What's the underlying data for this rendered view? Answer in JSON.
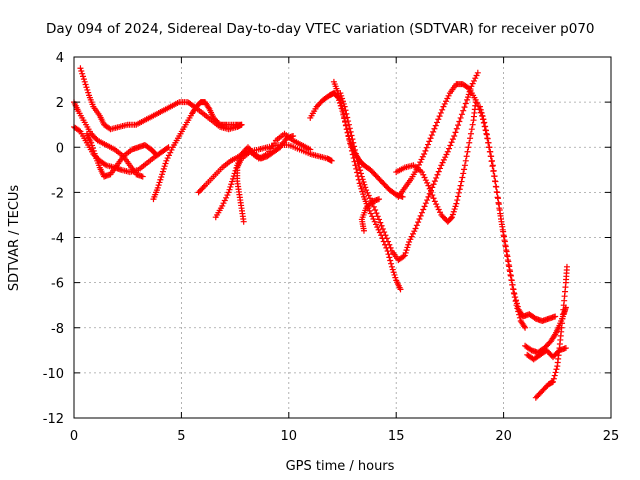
{
  "chart_data": {
    "type": "scatter",
    "title": "Day 094 of 2024, Sidereal Day-to-day VTEC variation (SDTVAR) for receiver p070",
    "xlabel": "GPS time / hours",
    "ylabel": "SDTVAR / TECUs",
    "xlim": [
      0,
      25
    ],
    "ylim": [
      -12,
      4
    ],
    "xticks": [
      "0",
      "5",
      "10",
      "15",
      "20",
      "25"
    ],
    "yticks": [
      "4",
      "2",
      "0",
      "-2",
      "-4",
      "-6",
      "-8",
      "-10",
      "-12"
    ],
    "grid": true,
    "marker": "plus",
    "color": "#ff0000",
    "series": [
      {
        "values": [
          [
            0.0,
            0.9
          ],
          [
            0.3,
            0.7
          ],
          [
            0.6,
            0.2
          ],
          [
            0.9,
            -0.3
          ],
          [
            1.2,
            -0.6
          ],
          [
            1.5,
            -0.8
          ],
          [
            1.9,
            -0.9
          ],
          [
            2.2,
            -1.0
          ],
          [
            2.6,
            -1.1
          ],
          [
            3.0,
            -1.0
          ],
          [
            3.4,
            -0.7
          ],
          [
            3.8,
            -0.4
          ],
          [
            4.1,
            -0.2
          ],
          [
            4.4,
            0.0
          ]
        ]
      },
      {
        "values": [
          [
            0.0,
            2.0
          ],
          [
            0.2,
            1.6
          ],
          [
            0.5,
            1.1
          ],
          [
            0.8,
            0.6
          ],
          [
            1.1,
            0.3
          ],
          [
            1.5,
            0.1
          ],
          [
            1.9,
            -0.1
          ],
          [
            2.3,
            -0.4
          ],
          [
            2.6,
            -0.8
          ],
          [
            2.9,
            -1.2
          ],
          [
            3.2,
            -1.3
          ]
        ]
      },
      {
        "values": [
          [
            0.3,
            3.5
          ],
          [
            0.5,
            2.9
          ],
          [
            0.7,
            2.3
          ],
          [
            0.9,
            1.8
          ],
          [
            1.2,
            1.4
          ],
          [
            1.4,
            1.0
          ],
          [
            1.7,
            0.8
          ],
          [
            2.1,
            0.9
          ],
          [
            2.5,
            1.0
          ],
          [
            2.9,
            1.0
          ],
          [
            3.3,
            1.2
          ],
          [
            3.7,
            1.4
          ],
          [
            4.1,
            1.6
          ],
          [
            4.5,
            1.8
          ],
          [
            4.9,
            2.0
          ],
          [
            5.3,
            2.0
          ],
          [
            5.6,
            1.8
          ],
          [
            6.0,
            1.5
          ],
          [
            6.4,
            1.2
          ],
          [
            6.8,
            0.9
          ],
          [
            7.2,
            0.8
          ],
          [
            7.6,
            0.9
          ],
          [
            7.8,
            1.0
          ]
        ]
      },
      {
        "values": [
          [
            0.6,
            0.6
          ],
          [
            0.8,
            0.2
          ],
          [
            1.0,
            -0.4
          ],
          [
            1.2,
            -0.9
          ],
          [
            1.4,
            -1.3
          ],
          [
            1.7,
            -1.2
          ],
          [
            2.0,
            -0.8
          ],
          [
            2.3,
            -0.4
          ],
          [
            2.7,
            -0.1
          ],
          [
            3.0,
            0.0
          ],
          [
            3.3,
            0.1
          ],
          [
            3.6,
            -0.1
          ],
          [
            3.8,
            -0.3
          ]
        ]
      },
      {
        "values": [
          [
            3.7,
            -2.3
          ],
          [
            3.9,
            -1.8
          ],
          [
            4.1,
            -1.2
          ],
          [
            4.3,
            -0.6
          ],
          [
            4.6,
            0.0
          ],
          [
            4.9,
            0.5
          ],
          [
            5.2,
            1.0
          ],
          [
            5.5,
            1.5
          ],
          [
            5.7,
            1.8
          ],
          [
            5.9,
            2.0
          ],
          [
            6.1,
            2.0
          ],
          [
            6.3,
            1.7
          ],
          [
            6.5,
            1.3
          ],
          [
            6.8,
            1.0
          ],
          [
            7.1,
            1.0
          ],
          [
            7.5,
            1.0
          ],
          [
            7.8,
            1.0
          ]
        ]
      },
      {
        "values": [
          [
            5.8,
            -2.0
          ],
          [
            6.1,
            -1.7
          ],
          [
            6.5,
            -1.3
          ],
          [
            6.9,
            -0.9
          ],
          [
            7.3,
            -0.6
          ],
          [
            7.7,
            -0.4
          ],
          [
            8.1,
            -0.2
          ],
          [
            8.6,
            -0.1
          ],
          [
            9.0,
            0.0
          ],
          [
            9.5,
            0.1
          ],
          [
            10.0,
            0.1
          ],
          [
            10.5,
            -0.1
          ],
          [
            11.0,
            -0.3
          ],
          [
            11.4,
            -0.4
          ],
          [
            11.8,
            -0.5
          ],
          [
            12.0,
            -0.6
          ]
        ]
      },
      {
        "values": [
          [
            6.6,
            -3.1
          ],
          [
            6.9,
            -2.6
          ],
          [
            7.2,
            -2.0
          ],
          [
            7.4,
            -1.4
          ],
          [
            7.6,
            -0.8
          ],
          [
            7.8,
            -0.3
          ],
          [
            8.1,
            0.0
          ],
          [
            8.4,
            -0.3
          ],
          [
            8.7,
            -0.5
          ],
          [
            9.0,
            -0.4
          ],
          [
            9.3,
            -0.2
          ],
          [
            9.6,
            0.0
          ],
          [
            9.9,
            0.4
          ],
          [
            10.2,
            0.5
          ]
        ]
      },
      {
        "values": [
          [
            7.9,
            -3.3
          ],
          [
            7.8,
            -2.7
          ],
          [
            7.7,
            -2.1
          ],
          [
            7.6,
            -1.5
          ],
          [
            7.6,
            -0.9
          ],
          [
            7.8,
            -0.5
          ],
          [
            8.2,
            -0.2
          ],
          [
            8.6,
            -0.5
          ],
          [
            9.0,
            -0.3
          ],
          [
            9.4,
            0.3
          ],
          [
            9.8,
            0.6
          ],
          [
            10.2,
            0.3
          ],
          [
            10.6,
            0.1
          ],
          [
            11.0,
            -0.1
          ]
        ]
      },
      {
        "values": [
          [
            11.0,
            1.3
          ],
          [
            11.3,
            1.8
          ],
          [
            11.6,
            2.1
          ],
          [
            11.9,
            2.3
          ],
          [
            12.1,
            2.4
          ],
          [
            12.3,
            2.2
          ],
          [
            12.5,
            1.6
          ],
          [
            12.7,
            0.8
          ],
          [
            12.9,
            0.1
          ],
          [
            13.1,
            -0.3
          ],
          [
            13.3,
            -0.6
          ],
          [
            13.5,
            -0.8
          ],
          [
            13.8,
            -1.0
          ],
          [
            14.1,
            -1.3
          ],
          [
            14.4,
            -1.6
          ],
          [
            14.7,
            -1.9
          ],
          [
            15.0,
            -2.1
          ],
          [
            15.3,
            -2.2
          ]
        ]
      },
      {
        "values": [
          [
            12.1,
            2.9
          ],
          [
            12.3,
            2.4
          ],
          [
            12.5,
            1.7
          ],
          [
            12.7,
            0.8
          ],
          [
            12.9,
            0.0
          ],
          [
            13.1,
            -0.8
          ],
          [
            13.3,
            -1.6
          ],
          [
            13.5,
            -2.2
          ],
          [
            13.7,
            -2.7
          ],
          [
            14.0,
            -3.3
          ],
          [
            14.3,
            -3.9
          ],
          [
            14.6,
            -4.6
          ],
          [
            14.8,
            -5.3
          ],
          [
            15.0,
            -5.9
          ],
          [
            15.2,
            -6.3
          ]
        ]
      },
      {
        "values": [
          [
            12.4,
            2.4
          ],
          [
            12.6,
            1.8
          ],
          [
            12.8,
            1.0
          ],
          [
            13.0,
            0.2
          ],
          [
            13.2,
            -0.6
          ],
          [
            13.4,
            -1.3
          ],
          [
            13.6,
            -1.9
          ],
          [
            13.9,
            -2.5
          ],
          [
            14.2,
            -3.2
          ],
          [
            14.5,
            -3.9
          ],
          [
            14.8,
            -4.6
          ],
          [
            15.1,
            -5.0
          ],
          [
            15.4,
            -4.8
          ],
          [
            15.6,
            -4.2
          ],
          [
            15.9,
            -3.6
          ],
          [
            16.2,
            -2.9
          ],
          [
            16.5,
            -2.2
          ],
          [
            16.8,
            -1.5
          ],
          [
            17.1,
            -0.8
          ],
          [
            17.4,
            -0.2
          ],
          [
            17.7,
            0.5
          ],
          [
            18.0,
            1.3
          ],
          [
            18.3,
            2.1
          ],
          [
            18.5,
            2.7
          ],
          [
            18.8,
            3.3
          ]
        ]
      },
      {
        "values": [
          [
            13.5,
            -3.7
          ],
          [
            13.4,
            -3.2
          ],
          [
            13.6,
            -2.7
          ],
          [
            13.9,
            -2.4
          ],
          [
            14.2,
            -2.3
          ]
        ]
      },
      {
        "values": [
          [
            15.0,
            -1.1
          ],
          [
            15.4,
            -0.9
          ],
          [
            15.8,
            -0.8
          ],
          [
            16.2,
            -1.1
          ],
          [
            16.5,
            -1.7
          ],
          [
            16.8,
            -2.4
          ],
          [
            17.1,
            -3.0
          ],
          [
            17.4,
            -3.3
          ],
          [
            17.6,
            -3.1
          ],
          [
            17.8,
            -2.5
          ],
          [
            18.0,
            -1.7
          ],
          [
            18.2,
            -0.8
          ],
          [
            18.4,
            0.2
          ],
          [
            18.6,
            1.2
          ],
          [
            18.7,
            2.0
          ]
        ]
      },
      {
        "values": [
          [
            15.1,
            -2.2
          ],
          [
            15.4,
            -1.8
          ],
          [
            15.7,
            -1.4
          ],
          [
            16.0,
            -0.9
          ],
          [
            16.3,
            -0.3
          ],
          [
            16.6,
            0.4
          ],
          [
            16.9,
            1.1
          ],
          [
            17.2,
            1.8
          ],
          [
            17.5,
            2.4
          ],
          [
            17.8,
            2.8
          ],
          [
            18.1,
            2.8
          ],
          [
            18.4,
            2.6
          ],
          [
            18.7,
            2.1
          ],
          [
            19.0,
            1.4
          ],
          [
            19.2,
            0.6
          ],
          [
            19.4,
            -0.4
          ],
          [
            19.6,
            -1.5
          ],
          [
            19.8,
            -2.7
          ],
          [
            20.0,
            -3.9
          ],
          [
            20.2,
            -5.0
          ],
          [
            20.4,
            -6.1
          ],
          [
            20.6,
            -7.0
          ],
          [
            20.8,
            -7.7
          ],
          [
            21.0,
            -8.0
          ]
        ]
      },
      {
        "values": [
          [
            18.9,
            1.8
          ],
          [
            19.1,
            1.1
          ],
          [
            19.3,
            0.2
          ],
          [
            19.5,
            -0.8
          ],
          [
            19.7,
            -2.0
          ],
          [
            19.9,
            -3.3
          ],
          [
            20.1,
            -4.4
          ],
          [
            20.3,
            -5.5
          ],
          [
            20.5,
            -6.5
          ],
          [
            20.7,
            -7.2
          ],
          [
            20.9,
            -7.5
          ],
          [
            21.2,
            -7.4
          ],
          [
            21.5,
            -7.6
          ],
          [
            21.8,
            -7.7
          ],
          [
            22.1,
            -7.6
          ],
          [
            22.4,
            -7.5
          ]
        ]
      },
      {
        "values": [
          [
            21.0,
            -8.8
          ],
          [
            21.3,
            -9.0
          ],
          [
            21.6,
            -9.1
          ],
          [
            21.9,
            -8.9
          ],
          [
            22.2,
            -8.6
          ],
          [
            22.4,
            -8.3
          ],
          [
            22.6,
            -7.9
          ],
          [
            22.8,
            -7.4
          ],
          [
            22.9,
            -7.1
          ]
        ]
      },
      {
        "values": [
          [
            21.5,
            -11.1
          ],
          [
            21.8,
            -10.8
          ],
          [
            22.1,
            -10.5
          ],
          [
            22.3,
            -10.4
          ],
          [
            22.5,
            -9.7
          ],
          [
            22.6,
            -8.9
          ],
          [
            22.7,
            -8.0
          ],
          [
            22.8,
            -7.0
          ],
          [
            22.9,
            -6.0
          ],
          [
            22.95,
            -5.3
          ]
        ]
      },
      {
        "values": [
          [
            21.1,
            -9.2
          ],
          [
            21.4,
            -9.4
          ],
          [
            21.7,
            -9.2
          ],
          [
            22.0,
            -9.0
          ],
          [
            22.3,
            -9.3
          ],
          [
            22.6,
            -9.0
          ],
          [
            22.9,
            -8.9
          ]
        ]
      }
    ]
  }
}
